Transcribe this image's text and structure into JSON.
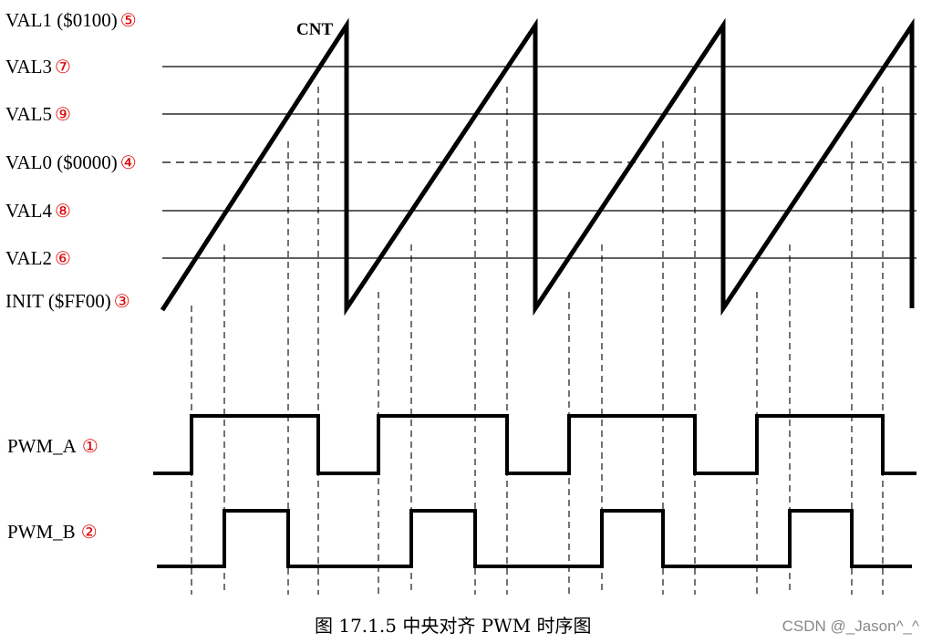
{
  "levels": [
    {
      "label": "VAL1 ($0100)",
      "marker": "⑤"
    },
    {
      "label": "VAL3",
      "marker": "⑦"
    },
    {
      "label": "VAL5",
      "marker": "⑨"
    },
    {
      "label": "VAL0 ($0000)",
      "marker": "④"
    },
    {
      "label": "VAL4",
      "marker": "⑧"
    },
    {
      "label": "VAL2",
      "marker": "⑥"
    },
    {
      "label": "INIT ($FF00)",
      "marker": "③"
    }
  ],
  "counter_label": "CNT",
  "signals": [
    {
      "label": "PWM_A",
      "marker": "①"
    },
    {
      "label": "PWM_B",
      "marker": "②"
    }
  ],
  "caption": "图 17.1.5 中央对齐 PWM 时序图",
  "watermark": "CSDN @_Jason^_^"
}
